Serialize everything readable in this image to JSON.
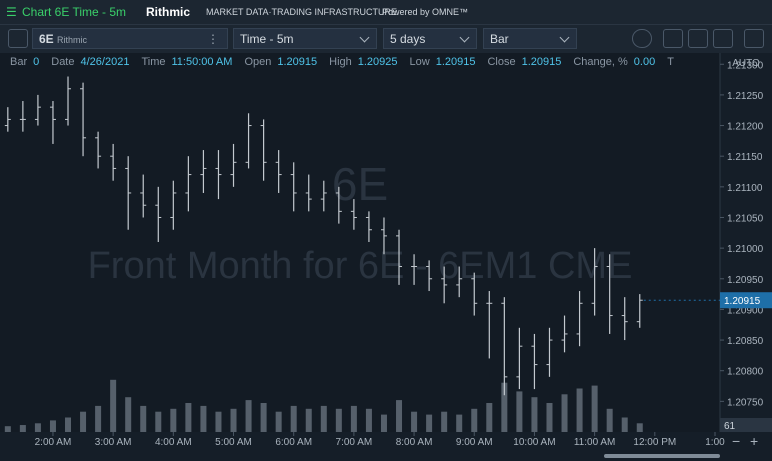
{
  "header": {
    "title": "Chart 6E Time - 5m",
    "brand": "Rithmic",
    "tagline": "MARKET DATA·TRADING INFRASTRUCTURE",
    "powered": "Powered by OMNE™"
  },
  "toolbar": {
    "symbol": "6E",
    "source": "Rithmic",
    "interval": "Time - 5m",
    "range": "5 days",
    "style": "Bar"
  },
  "info_bar": {
    "items": [
      {
        "label": "Bar",
        "value": "0"
      },
      {
        "label": "Date",
        "value": "4/26/2021"
      },
      {
        "label": "Time",
        "value": "11:50:00 AM"
      },
      {
        "label": "Open",
        "value": "1.20915"
      },
      {
        "label": "High",
        "value": "1.20925"
      },
      {
        "label": "Low",
        "value": "1.20915"
      },
      {
        "label": "Close",
        "value": "1.20915"
      },
      {
        "label": "Change, %",
        "value": "0.00"
      },
      {
        "label": "T"
      }
    ]
  },
  "chart_data": {
    "type": "ohlc",
    "watermark_symbol": "6E",
    "watermark_text": "Front Month for 6E - 6EM1 CME",
    "scale_mode": "AUTO",
    "volume_label": "61",
    "x": [
      1.25,
      1.5,
      1.75,
      2,
      2.25,
      2.5,
      2.75,
      3,
      3.25,
      3.5,
      3.75,
      4,
      4.25,
      4.5,
      4.75,
      5,
      5.25,
      5.5,
      5.75,
      6,
      6.25,
      6.5,
      6.75,
      7,
      7.25,
      7.5,
      7.75,
      8,
      8.25,
      8.5,
      8.75,
      9,
      9.25,
      9.5,
      9.75,
      10,
      10.25,
      10.5,
      10.75,
      11,
      11.25,
      11.5,
      11.75
    ],
    "open": [
      1.212,
      1.2121,
      1.2121,
      1.2123,
      1.2121,
      1.2126,
      1.2118,
      1.2115,
      1.2113,
      1.2109,
      1.2107,
      1.2105,
      1.2109,
      1.2112,
      1.2113,
      1.2112,
      1.2114,
      1.212,
      1.2114,
      1.2112,
      1.2109,
      1.2108,
      1.2109,
      1.2106,
      1.2105,
      1.2103,
      1.2102,
      1.2097,
      1.2097,
      1.2095,
      1.2094,
      1.2095,
      1.2091,
      1.2091,
      1.2079,
      1.2084,
      1.2081,
      1.2085,
      1.2086,
      1.2091,
      1.2097,
      1.2089,
      1.2088
    ],
    "high": [
      1.2123,
      1.2124,
      1.2125,
      1.2124,
      1.2128,
      1.2127,
      1.2119,
      1.2117,
      1.2115,
      1.2112,
      1.211,
      1.2111,
      1.2115,
      1.2116,
      1.2116,
      1.2117,
      1.2122,
      1.2121,
      1.2116,
      1.2114,
      1.2112,
      1.2111,
      1.211,
      1.2108,
      1.2106,
      1.2105,
      1.2103,
      1.2099,
      1.2098,
      1.2097,
      1.2097,
      1.2096,
      1.2093,
      1.2092,
      1.2087,
      1.2086,
      1.2087,
      1.2089,
      1.2093,
      1.21,
      1.2099,
      1.2092,
      1.20925
    ],
    "low": [
      1.2119,
      1.2119,
      1.212,
      1.2117,
      1.212,
      1.2115,
      1.2113,
      1.2111,
      1.2103,
      1.2105,
      1.2101,
      1.2103,
      1.2106,
      1.2109,
      1.2108,
      1.211,
      1.2113,
      1.2111,
      1.2109,
      1.2106,
      1.2106,
      1.2106,
      1.2104,
      1.2103,
      1.2101,
      1.2099,
      1.2094,
      1.2094,
      1.2093,
      1.2091,
      1.2092,
      1.2089,
      1.2082,
      1.2076,
      1.2077,
      1.2077,
      1.2079,
      1.2083,
      1.2084,
      1.2089,
      1.2086,
      1.2085,
      1.2087
    ],
    "close": [
      1.2121,
      1.2121,
      1.2123,
      1.2121,
      1.2126,
      1.2118,
      1.2115,
      1.2113,
      1.2109,
      1.2107,
      1.2105,
      1.2109,
      1.2112,
      1.2113,
      1.2112,
      1.2114,
      1.212,
      1.2114,
      1.2112,
      1.2109,
      1.2108,
      1.2109,
      1.2106,
      1.2105,
      1.2103,
      1.2102,
      1.2097,
      1.2097,
      1.2095,
      1.2094,
      1.2095,
      1.2091,
      1.2091,
      1.2079,
      1.2084,
      1.2081,
      1.2085,
      1.2086,
      1.2091,
      1.2097,
      1.2089,
      1.2088,
      1.20915
    ],
    "volume": [
      10,
      12,
      15,
      20,
      25,
      35,
      45,
      90,
      60,
      45,
      35,
      40,
      50,
      45,
      35,
      40,
      55,
      50,
      35,
      45,
      40,
      45,
      40,
      45,
      40,
      30,
      55,
      35,
      30,
      35,
      30,
      40,
      50,
      85,
      70,
      60,
      50,
      65,
      75,
      80,
      40,
      25,
      15
    ],
    "color": "#c3c9cf",
    "volume_color": "#56606b",
    "vlim": [
      0,
      150
    ],
    "xlim": [
      1.12,
      13.05
    ],
    "xticks": [
      {
        "value": 2,
        "label": "2:00 AM"
      },
      {
        "value": 3,
        "label": "3:00 AM"
      },
      {
        "value": 4,
        "label": "4:00 AM"
      },
      {
        "value": 5,
        "label": "5:00 AM"
      },
      {
        "value": 6,
        "label": "6:00 AM"
      },
      {
        "value": 7,
        "label": "7:00 AM"
      },
      {
        "value": 8,
        "label": "8:00 AM"
      },
      {
        "value": 9,
        "label": "9:00 AM"
      },
      {
        "value": 10,
        "label": "10:00 AM"
      },
      {
        "value": 11,
        "label": "11:00 AM"
      },
      {
        "value": 12,
        "label": "12:00 PM"
      },
      {
        "value": 13,
        "label": "1:00"
      }
    ],
    "ylim": [
      1.207,
      1.2132
    ],
    "yticks": [
      {
        "value": 1.213,
        "label": "1.21300"
      },
      {
        "value": 1.2125,
        "label": "1.21250"
      },
      {
        "value": 1.212,
        "label": "1.21200"
      },
      {
        "value": 1.2115,
        "label": "1.21150"
      },
      {
        "value": 1.211,
        "label": "1.21100"
      },
      {
        "value": 1.2105,
        "label": "1.21050"
      },
      {
        "value": 1.21,
        "label": "1.21000"
      },
      {
        "value": 1.2095,
        "label": "1.20950"
      },
      {
        "value": 1.209,
        "label": "1.20900"
      },
      {
        "value": 1.2085,
        "label": "1.20850"
      },
      {
        "value": 1.208,
        "label": "1.20800"
      },
      {
        "value": 1.2075,
        "label": "1.20750"
      }
    ]
  }
}
